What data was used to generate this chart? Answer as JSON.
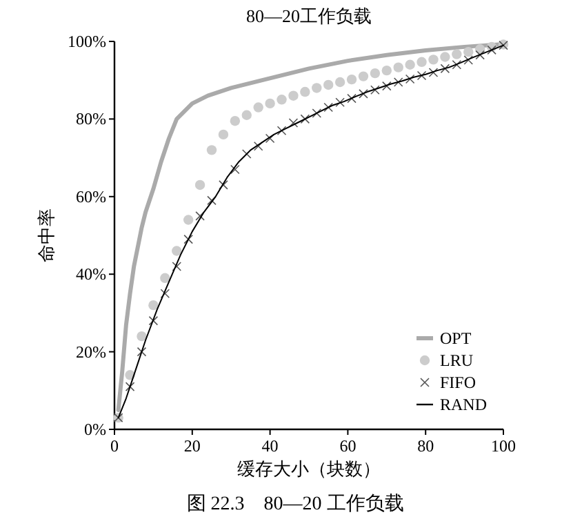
{
  "chart_data": {
    "type": "line",
    "title": "80—20工作负载",
    "xlabel": "缓存大小（块数）",
    "ylabel": "命中率",
    "annotations": [
      "图 22.3　80—20 工作负载"
    ],
    "xlim": [
      0,
      100
    ],
    "xticks": [
      0,
      20,
      40,
      60,
      80,
      100
    ],
    "ylim": [
      0,
      100
    ],
    "yticks": [
      {
        "value": 0,
        "label": "0%"
      },
      {
        "value": 20,
        "label": "20%"
      },
      {
        "value": 40,
        "label": "40%"
      },
      {
        "value": 60,
        "label": "60%"
      },
      {
        "value": 80,
        "label": "80%"
      },
      {
        "value": 100,
        "label": "100%"
      }
    ],
    "grid": false,
    "legend": "bottom right",
    "series": [
      {
        "name": "OPT",
        "marker": "none",
        "color": "#aaaaaa",
        "x": [
          1,
          2,
          3,
          4,
          5,
          6,
          7,
          8,
          10,
          12,
          14,
          16,
          18,
          20,
          24,
          30,
          38,
          50,
          60,
          70,
          80,
          90,
          100
        ],
        "values": [
          5,
          15,
          27,
          35,
          42,
          47,
          52,
          56,
          62,
          69,
          75,
          80,
          82,
          84,
          86,
          88,
          90,
          93,
          95,
          96.5,
          97.7,
          98.6,
          99.3
        ]
      },
      {
        "name": "LRU",
        "type": "scatter",
        "marker": "circle",
        "color": "#cccccc",
        "x": [
          1,
          4,
          7,
          10,
          13,
          16,
          19,
          22,
          25,
          28,
          31,
          34,
          37,
          40,
          43,
          46,
          49,
          52,
          55,
          58,
          61,
          64,
          67,
          70,
          73,
          76,
          79,
          82,
          85,
          88,
          91,
          94,
          97,
          100
        ],
        "values": [
          3,
          14,
          24,
          32,
          39,
          46,
          54,
          63,
          72,
          76,
          79.5,
          81,
          83,
          84,
          85,
          86,
          87,
          88,
          88.8,
          89.5,
          90.2,
          91,
          91.8,
          92.5,
          93.3,
          94,
          94.7,
          95.3,
          96,
          96.7,
          97.3,
          98,
          98.6,
          99.2
        ]
      },
      {
        "name": "FIFO",
        "type": "scatter",
        "marker": "cross",
        "color": "#555555",
        "x": [
          1,
          4,
          7,
          10,
          13,
          16,
          19,
          22,
          25,
          28,
          31,
          34,
          37,
          40,
          43,
          46,
          49,
          52,
          55,
          58,
          61,
          64,
          67,
          70,
          73,
          76,
          79,
          82,
          85,
          88,
          91,
          94,
          97,
          100
        ],
        "values": [
          3,
          11,
          20,
          28,
          35,
          42,
          49,
          55,
          59,
          63,
          67,
          71,
          73,
          75,
          77,
          79,
          80,
          81.5,
          83,
          84.3,
          85.3,
          86.5,
          87.5,
          88.5,
          89.5,
          90.3,
          91.2,
          92,
          93,
          94,
          95.2,
          96.5,
          97.8,
          99
        ]
      },
      {
        "name": "RAND",
        "marker": "none",
        "color": "#000000",
        "x": [
          1,
          3,
          5,
          8,
          11,
          14,
          17,
          20,
          23,
          26,
          29,
          32,
          35,
          38,
          41,
          44,
          47,
          50,
          53,
          56,
          59,
          62,
          65,
          68,
          71,
          74,
          77,
          80,
          83,
          86,
          89,
          92,
          95,
          98,
          100
        ],
        "values": [
          3,
          8,
          14,
          23,
          31,
          38,
          45,
          51,
          56,
          60,
          65,
          69,
          72,
          74,
          76,
          77.5,
          79,
          80.5,
          82,
          83.5,
          84.5,
          85.8,
          87,
          88,
          89,
          89.8,
          90.8,
          91.5,
          92.5,
          93.3,
          94.5,
          95.8,
          97,
          98.2,
          99
        ]
      }
    ]
  }
}
